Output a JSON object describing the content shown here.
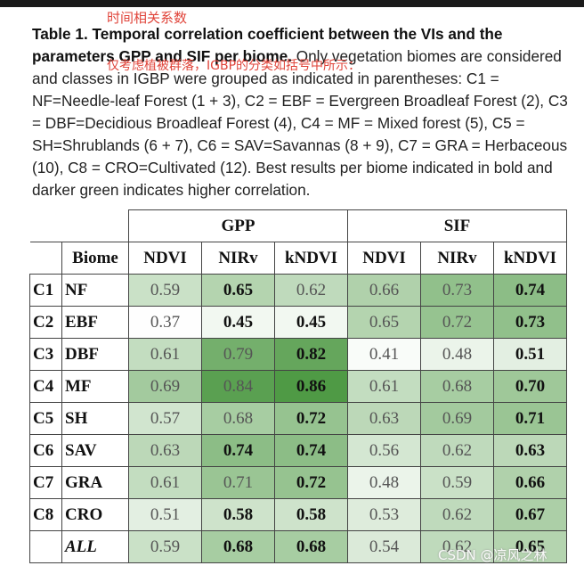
{
  "annotation_top": "时间相关系数",
  "annotation_overlay": "仅考虑植被群落，IGBP的分类如括号中所示：",
  "caption": {
    "bold": "Table 1. Temporal correlation coefficient between the VIs and the parameters GPP and SIF per biome.",
    "rest": " Only vegetation biomes are considered and classes in IGBP were grouped as indicated in parentheses: C1 = NF=Needle-leaf Forest (1 + 3), C2 = EBF = Evergreen Broadleaf Forest (2), C3 = DBF=Decidious Broadleaf Forest (4), C4 = MF = Mixed forest (5), C5 = SH=Shrublands (6 + 7), C6 = SAV=Savannas (8 + 9), C7 = GRA = Herbaceous (10), C8 = CRO=Cultivated (12). Best results per biome indicated in bold and darker green indicates higher correlation."
  },
  "table": {
    "group_headers": [
      "GPP",
      "SIF"
    ],
    "biome_header": "Biome",
    "sub_headers": [
      "NDVI",
      "NIRv",
      "kNDVI",
      "NDVI",
      "NIRv",
      "kNDVI"
    ],
    "rows": [
      {
        "code": "C1",
        "biome": "NF",
        "values": [
          "0.59",
          "0.65",
          "0.62",
          "0.66",
          "0.73",
          "0.74"
        ],
        "bold": [
          false,
          true,
          false,
          false,
          false,
          true
        ]
      },
      {
        "code": "C2",
        "biome": "EBF",
        "values": [
          "0.37",
          "0.45",
          "0.45",
          "0.65",
          "0.72",
          "0.73"
        ],
        "bold": [
          false,
          true,
          true,
          false,
          false,
          true
        ]
      },
      {
        "code": "C3",
        "biome": "DBF",
        "values": [
          "0.61",
          "0.79",
          "0.82",
          "0.41",
          "0.48",
          "0.51"
        ],
        "bold": [
          false,
          false,
          true,
          false,
          false,
          true
        ]
      },
      {
        "code": "C4",
        "biome": "MF",
        "values": [
          "0.69",
          "0.84",
          "0.86",
          "0.61",
          "0.68",
          "0.70"
        ],
        "bold": [
          false,
          false,
          true,
          false,
          false,
          true
        ]
      },
      {
        "code": "C5",
        "biome": "SH",
        "values": [
          "0.57",
          "0.68",
          "0.72",
          "0.63",
          "0.69",
          "0.71"
        ],
        "bold": [
          false,
          false,
          true,
          false,
          false,
          true
        ]
      },
      {
        "code": "C6",
        "biome": "SAV",
        "values": [
          "0.63",
          "0.74",
          "0.74",
          "0.56",
          "0.62",
          "0.63"
        ],
        "bold": [
          false,
          true,
          true,
          false,
          false,
          true
        ]
      },
      {
        "code": "C7",
        "biome": "GRA",
        "values": [
          "0.61",
          "0.71",
          "0.72",
          "0.48",
          "0.59",
          "0.66"
        ],
        "bold": [
          false,
          false,
          true,
          false,
          false,
          true
        ]
      },
      {
        "code": "C8",
        "biome": "CRO",
        "values": [
          "0.51",
          "0.58",
          "0.58",
          "0.53",
          "0.62",
          "0.67"
        ],
        "bold": [
          false,
          true,
          true,
          false,
          false,
          true
        ]
      },
      {
        "code": "",
        "biome": "ALL",
        "values": [
          "0.59",
          "0.68",
          "0.68",
          "0.54",
          "0.62",
          "0.65"
        ],
        "bold": [
          false,
          true,
          true,
          false,
          false,
          true
        ],
        "italic": true
      }
    ]
  },
  "colors": {
    "green_low": "#ffffff",
    "green_high": "#4f9a45"
  },
  "watermark": "CSDN @凉风之林"
}
